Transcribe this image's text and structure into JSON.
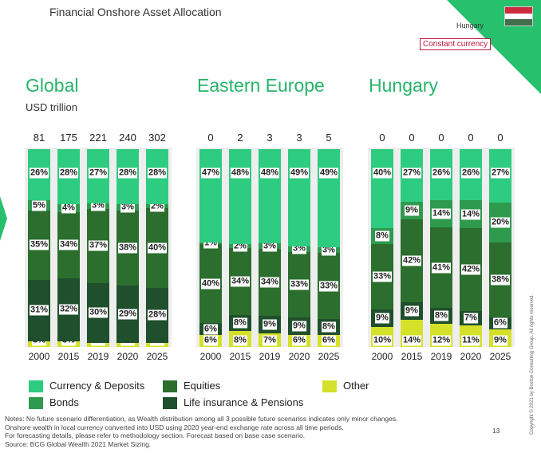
{
  "header": {
    "title": "Financial Onshore Asset Allocation",
    "country": "Hungary",
    "badge": "Constant currency"
  },
  "colors": {
    "currency": "#2ecc80",
    "bonds": "#2e9a4e",
    "equities": "#2b6e2e",
    "life": "#1f4f2c",
    "other": "#d4e02a",
    "accent": "#27b46a"
  },
  "legend": [
    {
      "label": "Currency & Deposits",
      "key": "currency"
    },
    {
      "label": "Equities",
      "key": "equities"
    },
    {
      "label": "Other",
      "key": "other"
    },
    {
      "label": "Bonds",
      "key": "bonds"
    },
    {
      "label": "Life insurance & Pensions",
      "key": "life"
    }
  ],
  "chart_data": [
    {
      "type": "bar",
      "stacked": true,
      "normalized": true,
      "title": "Global",
      "subtitle": "USD trillion",
      "categories": [
        "2000",
        "2015",
        "2019",
        "2020",
        "2025"
      ],
      "totals": [
        "81",
        "175",
        "221",
        "240",
        "302"
      ],
      "series": [
        {
          "name": "Other",
          "key": "other",
          "values": [
            3,
            3,
            2,
            2,
            2
          ]
        },
        {
          "name": "Life insurance & Pensions",
          "key": "life",
          "values": [
            31,
            32,
            30,
            29,
            28
          ]
        },
        {
          "name": "Equities",
          "key": "equities",
          "values": [
            35,
            34,
            37,
            38,
            40
          ]
        },
        {
          "name": "Bonds",
          "key": "bonds",
          "values": [
            5,
            4,
            3,
            3,
            2
          ]
        },
        {
          "name": "Currency & Deposits",
          "key": "currency",
          "values": [
            26,
            28,
            27,
            28,
            28
          ]
        }
      ]
    },
    {
      "type": "bar",
      "stacked": true,
      "normalized": true,
      "title": "Eastern Europe",
      "subtitle": "",
      "categories": [
        "2000",
        "2015",
        "2019",
        "2020",
        "2025"
      ],
      "totals": [
        "0",
        "2",
        "3",
        "3",
        "5"
      ],
      "series": [
        {
          "name": "Other",
          "key": "other",
          "values": [
            6,
            8,
            7,
            6,
            6
          ]
        },
        {
          "name": "Life insurance & Pensions",
          "key": "life",
          "values": [
            6,
            8,
            9,
            9,
            8
          ]
        },
        {
          "name": "Equities",
          "key": "equities",
          "values": [
            40,
            34,
            34,
            33,
            33
          ]
        },
        {
          "name": "Bonds",
          "key": "bonds",
          "values": [
            1,
            2,
            3,
            3,
            3
          ]
        },
        {
          "name": "Currency & Deposits",
          "key": "currency",
          "values": [
            47,
            48,
            48,
            49,
            49
          ]
        }
      ]
    },
    {
      "type": "bar",
      "stacked": true,
      "normalized": true,
      "title": "Hungary",
      "subtitle": "",
      "categories": [
        "2000",
        "2015",
        "2019",
        "2020",
        "2025"
      ],
      "totals": [
        "0",
        "0",
        "0",
        "0",
        "0"
      ],
      "series": [
        {
          "name": "Other",
          "key": "other",
          "values": [
            10,
            14,
            12,
            11,
            9
          ]
        },
        {
          "name": "Life insurance & Pensions",
          "key": "life",
          "values": [
            9,
            9,
            8,
            7,
            6
          ]
        },
        {
          "name": "Equities",
          "key": "equities",
          "values": [
            33,
            42,
            41,
            42,
            38
          ]
        },
        {
          "name": "Bonds",
          "key": "bonds",
          "values": [
            8,
            9,
            14,
            14,
            20
          ]
        },
        {
          "name": "Currency & Deposits",
          "key": "currency",
          "values": [
            40,
            27,
            26,
            26,
            27
          ]
        }
      ]
    }
  ],
  "notes": [
    "Notes: No future scenario differentiation, as Wealth distribution among all 3 possible future scenarios indicates only minor changes.",
    "Onshore wealth in local currency converted into USD using 2020 year-end exchange rate across all time periods.",
    "For forecasting details, please refer to methodology section. Forecast based on base case scenario.",
    "Source: BCG Global Wealth 2021 Market Sizing."
  ],
  "page_number": "13",
  "copyright": "Copyright © 2021 by Boston Consulting Group. All rights reserved."
}
